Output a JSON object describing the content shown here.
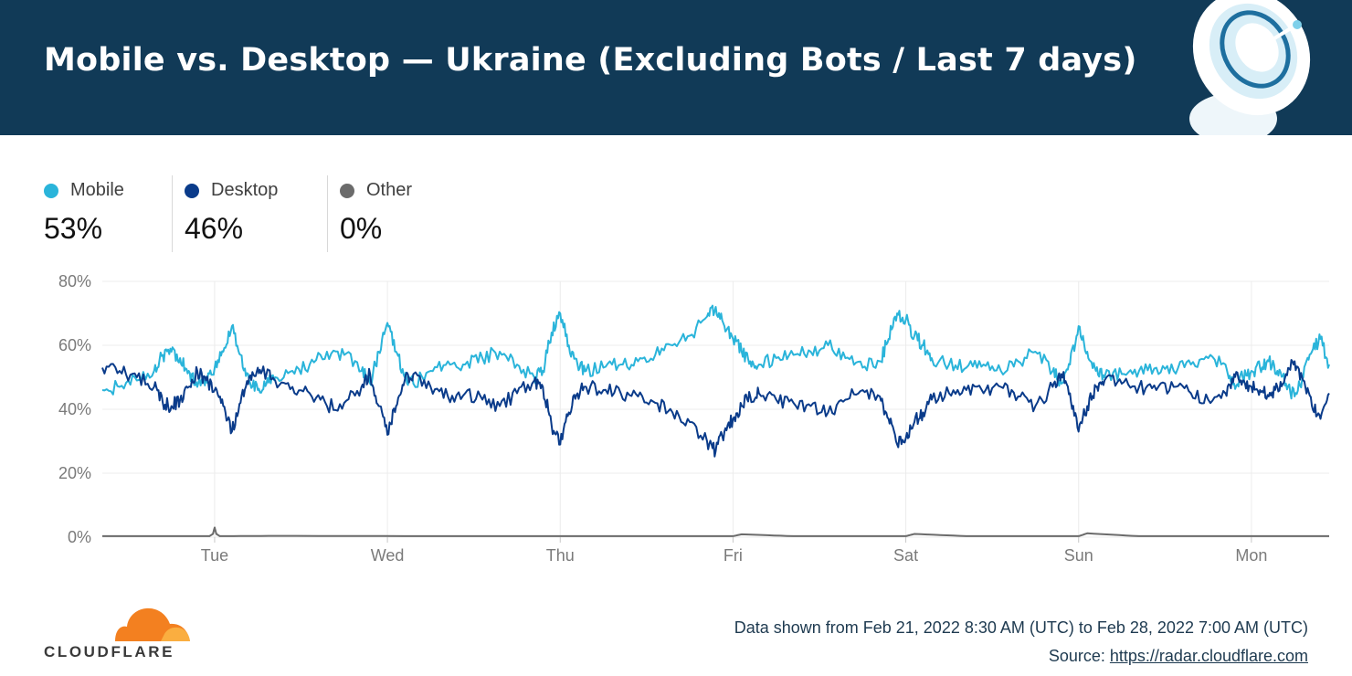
{
  "header": {
    "title": "Mobile vs. Desktop — Ukraine (Excluding Bots / Last 7 days)"
  },
  "legend": [
    {
      "name": "Mobile",
      "value": "53%",
      "color": "#2ab4da"
    },
    {
      "name": "Desktop",
      "value": "46%",
      "color": "#0a3b8a"
    },
    {
      "name": "Other",
      "value": "0%",
      "color": "#6b6b6b"
    }
  ],
  "footer": {
    "range_text": "Data shown from Feb 21, 2022 8:30 AM (UTC) to Feb 28, 2022 7:00 AM (UTC)",
    "source_label": "Source:",
    "source_link": "https://radar.cloudflare.com",
    "logo_text": "CLOUDFLARE"
  },
  "chart_data": {
    "type": "line",
    "xlabel": "",
    "ylabel": "",
    "y_ticks": [
      "0%",
      "20%",
      "40%",
      "60%",
      "80%"
    ],
    "ylim": [
      0,
      80
    ],
    "x_tick_labels": [
      "Tue",
      "Wed",
      "Thu",
      "Fri",
      "Sat",
      "Sun",
      "Mon"
    ],
    "x_tick_days": [
      0.65,
      1.65,
      2.65,
      3.65,
      4.65,
      5.65,
      6.65
    ],
    "xlim_days": [
      0,
      7.1
    ],
    "grid": true,
    "series": [
      {
        "name": "Mobile",
        "color": "#2ab4da",
        "x": [
          0.0,
          0.1,
          0.2,
          0.3,
          0.35,
          0.4,
          0.45,
          0.5,
          0.55,
          0.6,
          0.65,
          0.7,
          0.75,
          0.8,
          0.85,
          0.9,
          0.95,
          1.0,
          1.1,
          1.2,
          1.3,
          1.4,
          1.5,
          1.55,
          1.6,
          1.65,
          1.7,
          1.75,
          1.8,
          1.9,
          2.0,
          2.1,
          2.2,
          2.3,
          2.4,
          2.5,
          2.55,
          2.6,
          2.65,
          2.7,
          2.75,
          2.8,
          2.9,
          3.0,
          3.1,
          3.2,
          3.3,
          3.4,
          3.5,
          3.55,
          3.6,
          3.65,
          3.7,
          3.75,
          3.8,
          3.9,
          4.0,
          4.1,
          4.2,
          4.3,
          4.4,
          4.5,
          4.55,
          4.6,
          4.65,
          4.7,
          4.75,
          4.8,
          4.9,
          5.0,
          5.1,
          5.2,
          5.3,
          5.4,
          5.5,
          5.55,
          5.6,
          5.65,
          5.7,
          5.75,
          5.8,
          5.9,
          6.0,
          6.1,
          6.2,
          6.3,
          6.4,
          6.5,
          6.55,
          6.6,
          6.65,
          6.7,
          6.75,
          6.8,
          6.85,
          6.9,
          6.95,
          7.0,
          7.05,
          7.1
        ],
        "y": [
          46,
          47,
          49,
          52,
          57,
          58,
          56,
          52,
          47,
          50,
          53,
          58,
          66,
          57,
          49,
          46,
          48,
          50,
          52,
          54,
          58,
          57,
          52,
          48,
          58,
          67,
          58,
          50,
          48,
          52,
          55,
          54,
          56,
          58,
          54,
          50,
          52,
          64,
          70,
          60,
          54,
          52,
          53,
          54,
          55,
          57,
          60,
          63,
          69,
          72,
          66,
          62,
          58,
          55,
          54,
          56,
          57,
          58,
          60,
          56,
          53,
          55,
          62,
          70,
          68,
          63,
          60,
          56,
          54,
          53,
          54,
          52,
          55,
          58,
          52,
          48,
          54,
          66,
          58,
          52,
          50,
          51,
          52,
          53,
          52,
          54,
          56,
          54,
          48,
          50,
          52,
          53,
          55,
          52,
          48,
          44,
          50,
          58,
          62,
          54
        ]
      },
      {
        "name": "Desktop",
        "color": "#0a3b8a",
        "x": [
          0.0,
          0.1,
          0.2,
          0.3,
          0.35,
          0.4,
          0.45,
          0.5,
          0.55,
          0.6,
          0.65,
          0.7,
          0.75,
          0.8,
          0.85,
          0.9,
          0.95,
          1.0,
          1.1,
          1.2,
          1.3,
          1.4,
          1.5,
          1.55,
          1.6,
          1.65,
          1.7,
          1.75,
          1.8,
          1.9,
          2.0,
          2.1,
          2.2,
          2.3,
          2.4,
          2.5,
          2.55,
          2.6,
          2.65,
          2.7,
          2.75,
          2.8,
          2.9,
          3.0,
          3.1,
          3.2,
          3.3,
          3.4,
          3.5,
          3.55,
          3.6,
          3.65,
          3.7,
          3.75,
          3.8,
          3.9,
          4.0,
          4.1,
          4.2,
          4.3,
          4.4,
          4.5,
          4.55,
          4.6,
          4.65,
          4.7,
          4.75,
          4.8,
          4.9,
          5.0,
          5.1,
          5.2,
          5.3,
          5.4,
          5.5,
          5.55,
          5.6,
          5.65,
          5.7,
          5.75,
          5.8,
          5.9,
          6.0,
          6.1,
          6.2,
          6.3,
          6.4,
          6.5,
          6.55,
          6.6,
          6.65,
          6.7,
          6.75,
          6.8,
          6.85,
          6.9,
          6.95,
          7.0,
          7.05,
          7.1
        ],
        "y": [
          53,
          52,
          50,
          47,
          42,
          41,
          43,
          47,
          52,
          49,
          46,
          41,
          33,
          42,
          50,
          53,
          51,
          49,
          47,
          45,
          41,
          42,
          47,
          51,
          41,
          32,
          41,
          49,
          51,
          47,
          44,
          45,
          43,
          41,
          45,
          49,
          47,
          35,
          29,
          39,
          45,
          47,
          46,
          45,
          44,
          42,
          39,
          36,
          30,
          27,
          33,
          37,
          41,
          44,
          45,
          43,
          42,
          41,
          39,
          43,
          46,
          44,
          37,
          29,
          31,
          36,
          39,
          43,
          45,
          46,
          45,
          47,
          44,
          41,
          47,
          51,
          45,
          33,
          41,
          47,
          49,
          48,
          47,
          46,
          47,
          45,
          43,
          45,
          51,
          49,
          47,
          46,
          44,
          47,
          51,
          55,
          49,
          41,
          37,
          45
        ]
      },
      {
        "name": "Other",
        "color": "#6b6b6b",
        "x": [
          0.0,
          0.5,
          0.62,
          0.64,
          0.65,
          0.66,
          0.68,
          1.0,
          2.0,
          3.0,
          3.65,
          3.7,
          4.0,
          4.65,
          4.7,
          5.0,
          5.65,
          5.7,
          6.0,
          6.5,
          7.0,
          7.1
        ],
        "y": [
          0.3,
          0.3,
          0.3,
          1.0,
          3.0,
          1.0,
          0.3,
          0.4,
          0.3,
          0.3,
          0.3,
          0.9,
          0.3,
          0.3,
          1.0,
          0.3,
          0.3,
          1.2,
          0.3,
          0.3,
          0.3,
          0.3
        ]
      }
    ]
  }
}
